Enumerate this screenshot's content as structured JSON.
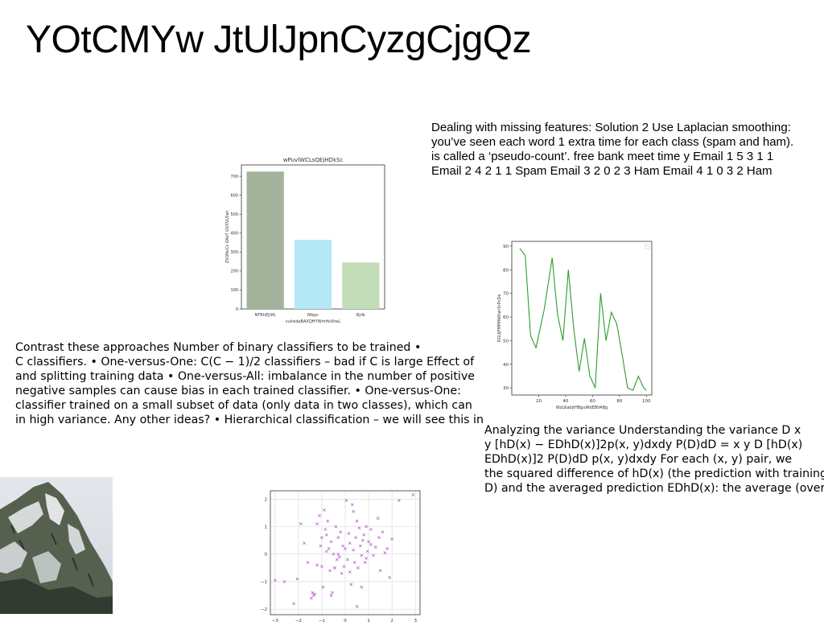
{
  "title": "YOtCMYw JtUlJpnCyzgCjgQz",
  "para_right": [
    "Dealing with missing features: Solution 2 Use Laplacian smoothing:",
    "you’ve seen each word 1 extra time for each class (spam and ham).",
    "is called a ‘pseudo-count’. free bank meet time y Email 1 5 3 1 1",
    "Email 2 4 2 1 1 Spam Email 3 2 0 2 3 Ham Email 4 1 0 3 2 Ham"
  ],
  "para_left": [
    "Contrast these approaches Number of binary classifiers to be trained •",
    "C classifiers. • One-versus-One: C(C − 1)/2 classifiers – bad if C is large Effect of",
    "and splitting training data • One-versus-All: imbalance in the number of positive",
    "negative samples can cause bias in each trained classifier. • One-versus-One:",
    "classifier trained on a small subset of data (only data in two classes), which can",
    "in high variance. Any other ideas? • Hierarchical classification – we will see this in"
  ],
  "para_bottom": [
    "Analyzing the variance Understanding the variance  D  x",
    "y [hD(x) − EDhD(x)]2p(x, y)dxdy P(D)dD =  x  y  D [hD(x)",
    "EDhD(x)]2 P(D)dD  p(x, y)dxdy For each (x, y) pair, we",
    "the squared difference of hD(x) (the prediction with training",
    "D) and the averaged prediction EDhD(x): the average (over"
  ],
  "chart_data": [
    {
      "type": "bar",
      "title": "wPuvlWCLsQEjHDkSc",
      "xlabel": "vulredaBAXQHYWmHsXheL",
      "ylabel": "ZSONvCs OAsT GVXVLEwt",
      "categories": [
        "NTRhEJUfL",
        "Nfqsc",
        "Rjrlk"
      ],
      "values": [
        725,
        365,
        245
      ],
      "colors": [
        "#a2b29b",
        "#b5e8f5",
        "#c3ddb8"
      ],
      "ylim": [
        0,
        760
      ],
      "yticks": [
        0,
        100,
        200,
        300,
        400,
        500,
        600,
        700
      ]
    },
    {
      "type": "line",
      "title": "",
      "xlabel": "WzLKabjtHBguWdEBVABg",
      "ylabel": "DGUJFMPMWItwrSrPcDe",
      "color": "#2e9a2e",
      "x": [
        6,
        10,
        14,
        18,
        24,
        30,
        34,
        38,
        42,
        46,
        50,
        54,
        58,
        62,
        66,
        70,
        74,
        78,
        82,
        86,
        90,
        94,
        98,
        100
      ],
      "y": [
        89,
        86,
        52,
        47,
        63,
        85,
        61,
        50,
        80,
        55,
        37,
        51,
        35,
        30,
        70,
        50,
        62,
        57,
        44,
        30,
        29,
        35,
        30,
        29
      ],
      "xlim": [
        0,
        104
      ],
      "ylim": [
        27,
        92
      ],
      "xticks": [
        20,
        40,
        60,
        80,
        100
      ],
      "yticks": [
        30,
        40,
        50,
        60,
        70,
        80,
        90
      ],
      "grid": false
    },
    {
      "type": "scatter",
      "title": "",
      "xlabel": "",
      "ylabel": "",
      "color": "#b257c8",
      "marker": "x",
      "grid": true,
      "xlim": [
        -3.2,
        3.2
      ],
      "ylim": [
        -2.2,
        2.3
      ],
      "xticks": [
        -3,
        -2,
        -1,
        0,
        1,
        2,
        3
      ],
      "yticks": [
        -2,
        -1,
        0,
        1,
        2
      ],
      "x": [
        -3.0,
        -2.6,
        -2.2,
        -2.05,
        -1.9,
        -1.75,
        -1.6,
        -1.45,
        -1.4,
        -1.35,
        -1.3,
        -1.2,
        -1.1,
        -1.05,
        -1.0,
        -0.95,
        -0.9,
        -0.85,
        -0.8,
        -0.75,
        -0.7,
        -0.65,
        -0.6,
        -0.55,
        -0.5,
        -0.45,
        -0.4,
        -0.35,
        -0.3,
        -0.25,
        -0.2,
        -0.15,
        -0.1,
        -0.05,
        0.0,
        0.05,
        0.1,
        0.15,
        0.2,
        0.25,
        0.3,
        0.35,
        0.4,
        0.45,
        0.5,
        0.55,
        0.6,
        0.65,
        0.7,
        0.75,
        0.8,
        0.85,
        0.9,
        0.95,
        1.0,
        1.1,
        1.2,
        1.3,
        1.4,
        1.5,
        1.6,
        1.7,
        1.8,
        1.9,
        2.0,
        2.3,
        2.9,
        -1.0,
        -0.6,
        0.2,
        0.5,
        -0.3,
        0.9,
        1.1,
        -0.8,
        0.35,
        -1.2,
        1.45,
        0.7,
        -0.45
      ],
      "y": [
        -0.95,
        -1.0,
        -1.8,
        -0.9,
        1.1,
        0.4,
        -0.3,
        -1.6,
        -1.4,
        -1.5,
        -1.45,
        -0.4,
        1.4,
        0.3,
        0.6,
        -1.2,
        1.6,
        0.9,
        0.1,
        1.2,
        0.2,
        -0.6,
        0.45,
        -1.4,
        0.0,
        -0.5,
        1.0,
        -0.2,
        0.6,
        -0.1,
        0.8,
        -0.7,
        0.3,
        -0.45,
        0.2,
        1.95,
        -0.2,
        0.75,
        0.4,
        -1.1,
        1.8,
        0.15,
        -0.3,
        0.6,
        1.2,
        -0.5,
        0.95,
        0.3,
        -1.2,
        0.5,
        0.7,
        -0.3,
        1.0,
        0.1,
        0.45,
        0.9,
        -0.05,
        0.25,
        1.3,
        -0.6,
        0.8,
        0.05,
        0.2,
        -0.85,
        0.55,
        1.95,
        2.15,
        -0.45,
        -1.5,
        -0.65,
        -1.9,
        0.0,
        -0.15,
        0.35,
        0.7,
        1.55,
        1.1,
        0.6,
        -0.05,
        -0.5
      ]
    }
  ],
  "photo": {
    "description_icon": "mountain-photo",
    "colors": [
      "#dde1e6",
      "#3f4a3c",
      "#eef0f2"
    ]
  }
}
